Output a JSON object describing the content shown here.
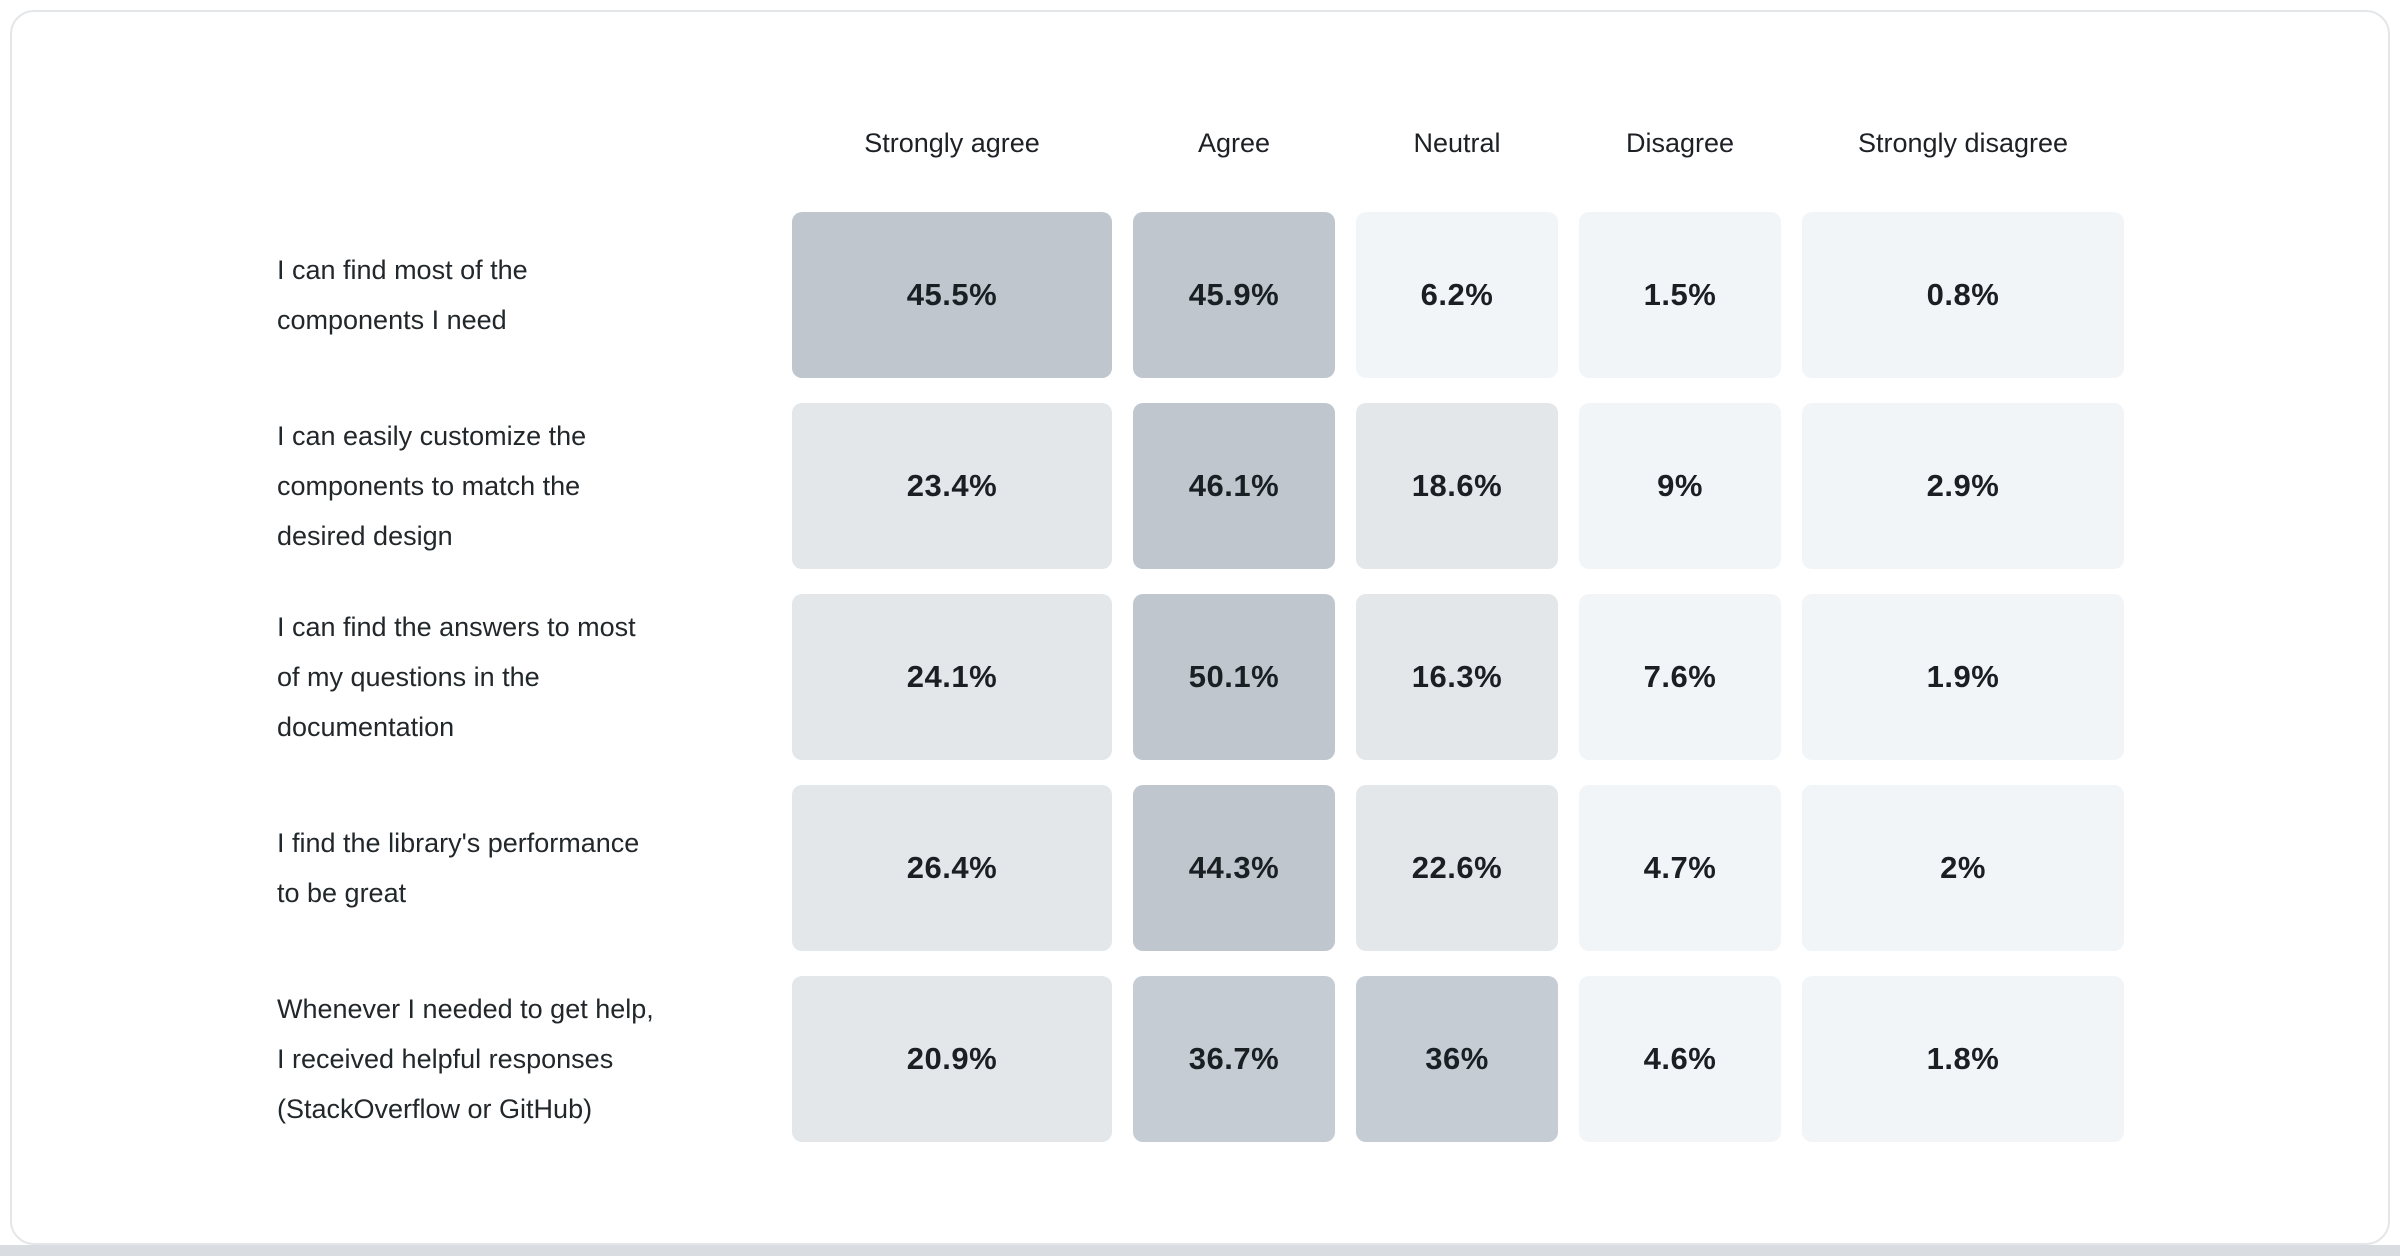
{
  "page": {
    "background": "#ffffff",
    "card_background": "#ffffff",
    "card_border_color": "#e4e7ea",
    "bottom_strip_color": "#d9dce0",
    "header_text_color": "#1d2125",
    "label_text_color": "#21272a",
    "value_text_color": "#1a1f24"
  },
  "chart_data": {
    "type": "heatmap",
    "title": "",
    "legend_position": "none",
    "grid": false,
    "columns": [
      "Strongly agree",
      "Agree",
      "Neutral",
      "Disagree",
      "Strongly disagree"
    ],
    "rows": [
      {
        "label": "I can find most of the\ncomponents I need",
        "values": [
          "45.5%",
          "45.9%",
          "6.2%",
          "1.5%",
          "0.8%"
        ]
      },
      {
        "label": "I can easily customize the\ncomponents to match the\ndesired design",
        "values": [
          "23.4%",
          "46.1%",
          "18.6%",
          "9%",
          "2.9%"
        ]
      },
      {
        "label": "I can find the answers to most\nof my questions in the\ndocumentation",
        "values": [
          "24.1%",
          "50.1%",
          "16.3%",
          "7.6%",
          "1.9%"
        ]
      },
      {
        "label": "I find the library's performance\nto be great",
        "values": [
          "26.4%",
          "44.3%",
          "22.6%",
          "4.7%",
          "2%"
        ]
      },
      {
        "label": "Whenever I needed to get help,\nI received helpful responses\n(StackOverflow or GitHub)",
        "values": [
          "20.9%",
          "36.7%",
          "36%",
          "4.6%",
          "1.8%"
        ]
      }
    ],
    "heat_scale": {
      "buckets": [
        {
          "min": 40,
          "color": "#bfc6cd"
        },
        {
          "min": 30,
          "color": "#c5ccd3"
        },
        {
          "min": 10,
          "color": "#e3e7ea"
        },
        {
          "min": 0,
          "color": "#f2f5f7"
        }
      ]
    }
  }
}
